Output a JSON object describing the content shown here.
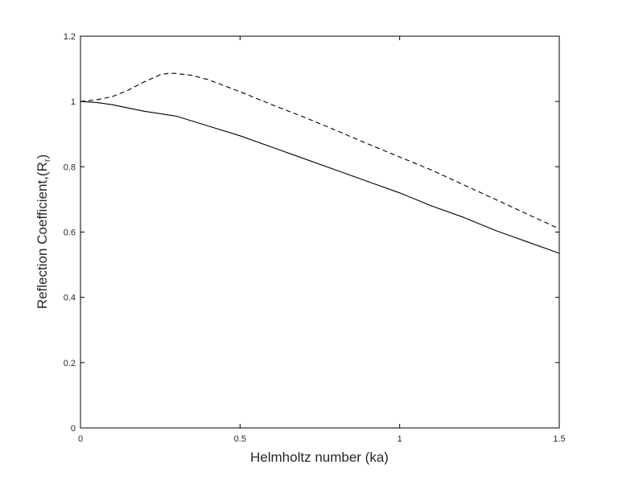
{
  "chart_data": {
    "type": "line",
    "title": "",
    "xlabel": "Helmholtz number (ka)",
    "ylabel": {
      "main": "Reflection Coefficient,(R",
      "subscript": "r",
      "close": ")"
    },
    "xlim": [
      0,
      1.5
    ],
    "ylim": [
      0,
      1.2
    ],
    "xticks": [
      0,
      0.5,
      1,
      1.5
    ],
    "xtick_labels": [
      "0",
      "0.5",
      "1",
      "1.5"
    ],
    "yticks": [
      0,
      0.2,
      0.4,
      0.6,
      0.8,
      1,
      1.2
    ],
    "ytick_labels": [
      "0",
      "0.2",
      "0.4",
      "0.6",
      "0.8",
      "1",
      "1.2"
    ],
    "grid": false,
    "legend": "none",
    "series": [
      {
        "style": "solid",
        "color": "#000000",
        "x": [
          0,
          0.05,
          0.1,
          0.15,
          0.2,
          0.3,
          0.4,
          0.5,
          0.6,
          0.7,
          0.8,
          0.9,
          1.0,
          1.1,
          1.2,
          1.3,
          1.4,
          1.5
        ],
        "y": [
          1.0,
          0.997,
          0.99,
          0.98,
          0.97,
          0.955,
          0.925,
          0.895,
          0.86,
          0.825,
          0.79,
          0.755,
          0.72,
          0.68,
          0.645,
          0.605,
          0.57,
          0.535
        ]
      },
      {
        "style": "dashed",
        "color": "#000000",
        "x": [
          0,
          0.05,
          0.1,
          0.15,
          0.2,
          0.25,
          0.28,
          0.3,
          0.35,
          0.4,
          0.5,
          0.6,
          0.7,
          0.8,
          0.9,
          1.0,
          1.1,
          1.2,
          1.3,
          1.4,
          1.5
        ],
        "y": [
          1.0,
          1.005,
          1.015,
          1.035,
          1.06,
          1.082,
          1.087,
          1.086,
          1.08,
          1.067,
          1.03,
          0.99,
          0.952,
          0.912,
          0.87,
          0.83,
          0.79,
          0.745,
          0.7,
          0.655,
          0.61
        ]
      }
    ]
  }
}
